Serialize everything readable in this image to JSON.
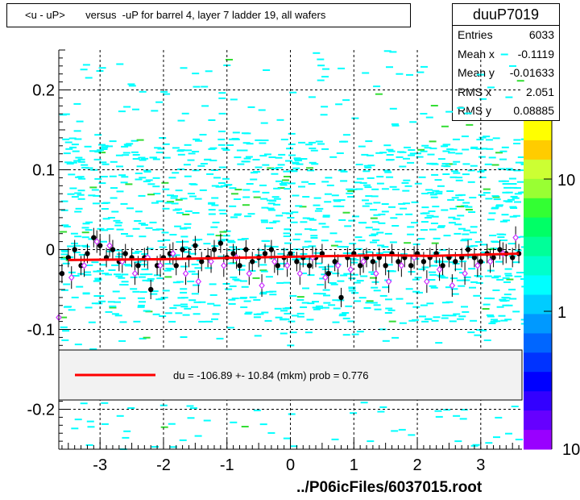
{
  "title": "<u - uP>       versus  -uP for barrel 4, layer 7 ladder 19, all wafers",
  "stats": {
    "name": "duuP7019",
    "rows": [
      {
        "label": "Entries",
        "value": "6033"
      },
      {
        "label": "Mean x",
        "value": "-0.1119"
      },
      {
        "label": "Mean y",
        "value": "-0.01633"
      },
      {
        "label": "RMS x",
        "value": "2.051"
      },
      {
        "label": "RMS y",
        "value": "0.08885"
      }
    ]
  },
  "footer": "../P06icFiles/6037015.root",
  "legend_text": "du = -106.89 +- 10.84 (mkm) prob = 0.776",
  "colors": {
    "cells": "#00ffff",
    "points_black": "#000000",
    "points_open": "#cc33ff",
    "fit": "#ff0000"
  },
  "chart_data": {
    "type": "scatter",
    "xlim": [
      -3.65,
      3.65
    ],
    "ylim": [
      -0.25,
      0.25
    ],
    "x_ticks": [
      -3,
      -2,
      -1,
      0,
      1,
      2,
      3
    ],
    "y_ticks": [
      -0.2,
      -0.1,
      0,
      0.1,
      0.2
    ],
    "x_tick_labels": [
      "-3",
      "-2",
      "-1",
      "0",
      "1",
      "2",
      "3"
    ],
    "y_tick_labels": [
      "-0.2",
      "-0.1",
      "0",
      "0.1",
      "0.2"
    ],
    "grid": true,
    "colorbar_labels": [
      "10",
      "1",
      "10"
    ],
    "fit_line": {
      "x": [
        -3.5,
        -2.0,
        0.0,
        1.5,
        2.2,
        3.6
      ],
      "y": [
        -0.013,
        -0.012,
        -0.009,
        -0.007,
        -0.008,
        -0.005
      ]
    },
    "profile_black": {
      "x": [
        -3.6,
        -3.5,
        -3.4,
        -3.3,
        -3.2,
        -3.1,
        -3.0,
        -2.9,
        -2.8,
        -2.7,
        -2.6,
        -2.5,
        -2.4,
        -2.3,
        -2.2,
        -2.1,
        -2.0,
        -1.9,
        -1.8,
        -1.7,
        -1.6,
        -1.5,
        -1.4,
        -1.3,
        -1.2,
        -1.1,
        -1.0,
        -0.9,
        -0.8,
        -0.7,
        -0.6,
        -0.5,
        -0.4,
        -0.3,
        -0.2,
        -0.1,
        0.0,
        0.1,
        0.2,
        0.3,
        0.4,
        0.5,
        0.6,
        0.7,
        0.8,
        0.9,
        1.0,
        1.1,
        1.2,
        1.3,
        1.4,
        1.5,
        1.6,
        1.7,
        1.8,
        1.9,
        2.0,
        2.1,
        2.2,
        2.3,
        2.4,
        2.5,
        2.6,
        2.7,
        2.8,
        2.9,
        3.0,
        3.1,
        3.2,
        3.3,
        3.4,
        3.5,
        3.6
      ],
      "y": [
        -0.03,
        -0.01,
        0.0,
        -0.02,
        -0.005,
        0.015,
        0.005,
        -0.01,
        0.0,
        -0.015,
        -0.005,
        -0.01,
        -0.02,
        -0.01,
        -0.05,
        -0.02,
        -0.01,
        -0.005,
        -0.02,
        0.0,
        -0.01,
        0.005,
        -0.015,
        -0.01,
        0.0,
        0.008,
        -0.01,
        -0.005,
        -0.02,
        0.0,
        -0.015,
        -0.01,
        -0.005,
        0.0,
        -0.02,
        -0.01,
        -0.005,
        -0.015,
        -0.01,
        -0.02,
        -0.01,
        -0.005,
        -0.03,
        -0.015,
        -0.06,
        -0.01,
        -0.005,
        -0.02,
        -0.01,
        -0.015,
        -0.01,
        -0.02,
        -0.005,
        -0.015,
        -0.01,
        -0.02,
        -0.005,
        -0.015,
        -0.01,
        -0.005,
        -0.02,
        -0.01,
        -0.015,
        -0.01,
        0.0,
        -0.01,
        -0.015,
        -0.005,
        -0.01,
        0.0,
        -0.005,
        -0.01,
        -0.005
      ]
    },
    "profile_open": {
      "x": [
        -3.65,
        -3.45,
        -3.25,
        -3.05,
        -2.85,
        -2.65,
        -2.45,
        -2.25,
        -2.05,
        -1.85,
        -1.65,
        -1.45,
        -1.25,
        -1.05,
        -0.85,
        -0.65,
        -0.45,
        -0.25,
        -0.05,
        0.15,
        0.35,
        0.55,
        0.75,
        0.95,
        1.15,
        1.35,
        1.55,
        1.75,
        1.95,
        2.15,
        2.35,
        2.55,
        2.75,
        2.95,
        3.15,
        3.35,
        3.55
      ],
      "y": [
        -0.085,
        -0.035,
        -0.02,
        0.01,
        0.005,
        -0.015,
        -0.03,
        -0.01,
        -0.02,
        -0.005,
        -0.03,
        -0.04,
        -0.015,
        -0.02,
        -0.01,
        -0.03,
        -0.045,
        -0.015,
        -0.02,
        -0.03,
        -0.01,
        -0.035,
        -0.02,
        -0.025,
        -0.015,
        -0.03,
        -0.04,
        -0.02,
        -0.01,
        -0.04,
        -0.025,
        -0.045,
        -0.03,
        -0.02,
        -0.015,
        -0.005,
        0.015
      ]
    }
  }
}
